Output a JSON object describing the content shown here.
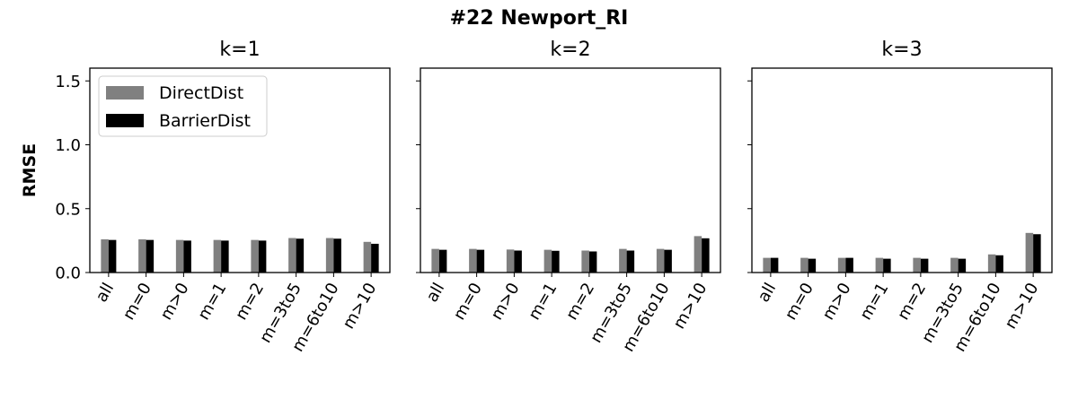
{
  "figure": {
    "title": "#22 Newport_RI",
    "ylabel": "RMSE"
  },
  "legend": {
    "placement": "top-left of first panel",
    "entries": [
      {
        "name": "DirectDist",
        "color": "#808080"
      },
      {
        "name": "BarrierDist",
        "color": "#000000"
      }
    ]
  },
  "chart_data": [
    {
      "type": "bar",
      "title": "k=1",
      "categories": [
        "all",
        "m=0",
        "m>0",
        "m=1",
        "m=2",
        "m=3to5",
        "m=6to10",
        "m>10"
      ],
      "ylim": [
        0,
        1.6
      ],
      "yticks": [
        "0.0",
        "0.5",
        "1.0",
        "1.5"
      ],
      "grid": false,
      "series": [
        {
          "name": "DirectDist",
          "color": "#808080",
          "values": [
            0.26,
            0.26,
            0.255,
            0.255,
            0.255,
            0.27,
            0.27,
            0.24
          ]
        },
        {
          "name": "BarrierDist",
          "color": "#000000",
          "values": [
            0.255,
            0.255,
            0.25,
            0.25,
            0.25,
            0.265,
            0.265,
            0.225
          ]
        }
      ]
    },
    {
      "type": "bar",
      "title": "k=2",
      "categories": [
        "all",
        "m=0",
        "m>0",
        "m=1",
        "m=2",
        "m=3to5",
        "m=6to10",
        "m>10"
      ],
      "ylim": [
        0,
        1.6
      ],
      "yticks": [
        "0.0",
        "0.5",
        "1.0",
        "1.5"
      ],
      "grid": false,
      "series": [
        {
          "name": "DirectDist",
          "color": "#808080",
          "values": [
            0.185,
            0.185,
            0.18,
            0.178,
            0.172,
            0.185,
            0.185,
            0.285
          ]
        },
        {
          "name": "BarrierDist",
          "color": "#000000",
          "values": [
            0.178,
            0.178,
            0.172,
            0.17,
            0.165,
            0.172,
            0.178,
            0.268
          ]
        }
      ]
    },
    {
      "type": "bar",
      "title": "k=3",
      "categories": [
        "all",
        "m=0",
        "m>0",
        "m=1",
        "m=2",
        "m=3to5",
        "m=6to10",
        "m>10"
      ],
      "ylim": [
        0,
        1.6
      ],
      "yticks": [
        "0.0",
        "0.5",
        "1.0",
        "1.5"
      ],
      "grid": false,
      "series": [
        {
          "name": "DirectDist",
          "color": "#808080",
          "values": [
            0.115,
            0.115,
            0.115,
            0.115,
            0.115,
            0.115,
            0.142,
            0.31
          ]
        },
        {
          "name": "BarrierDist",
          "color": "#000000",
          "values": [
            0.115,
            0.108,
            0.115,
            0.108,
            0.108,
            0.108,
            0.135,
            0.3
          ]
        }
      ]
    }
  ]
}
